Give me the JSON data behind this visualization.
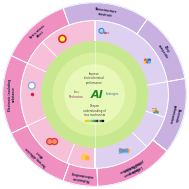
{
  "figsize": [
    1.89,
    1.89
  ],
  "dpi": 100,
  "r_outer": 0.97,
  "r_mid": 0.78,
  "r_inner_ring_outer": 0.78,
  "r_inner_ring_inner": 0.56,
  "r_core": 0.37,
  "outer_bg_color": "#cce0f5",
  "left_outer_color": "#f090c0",
  "right_outer_color": "#c8b0e0",
  "left_inner_color": "#f5c0d8",
  "right_inner_color": "#ddd0f0",
  "core_color": "#c8e890",
  "core_color2": "#d8f0a0",
  "core_color3": "#e8f8b8",
  "sections": [
    {
      "a1": 55,
      "a2": 110,
      "color": "#c8b0e0",
      "label": "Nanostructure\nconstruct",
      "la": 82,
      "lside": "right"
    },
    {
      "a1": 10,
      "a2": 55,
      "color": "#c8b0e0",
      "label": "Alloy\ncomposite",
      "la": 32,
      "lside": "right"
    },
    {
      "a1": -38,
      "a2": 10,
      "color": "#c8b0e0",
      "label": "Electrode\noptimization",
      "la": -14,
      "lside": "right"
    },
    {
      "a1": -88,
      "a2": -38,
      "color": "#c8b0e0",
      "label": "Surface\nmodification",
      "la": -63,
      "lside": "right"
    },
    {
      "a1": 110,
      "a2": 155,
      "color": "#f090c0",
      "label": "Strain-stress\neffect",
      "la": 132,
      "lside": "left"
    },
    {
      "a1": 155,
      "a2": 205,
      "color": "#f090c0",
      "label": "Electronic insulating\nsubstance",
      "la": 180,
      "lside": "left"
    },
    {
      "a1": 205,
      "a2": 250,
      "color": "#f090c0",
      "label": "Two-way diffusion\neffect",
      "la": 227,
      "lside": "left"
    },
    {
      "a1": 250,
      "a2": 272,
      "color": "#f090c0",
      "label": "Mechanism\nunderstanding",
      "la": 261,
      "lside": "left"
    },
    {
      "a1": 272,
      "a2": 322,
      "color": "#f090c0",
      "label": "Lithium poor\nphase formation",
      "la": 297,
      "lside": "left"
    }
  ],
  "dividers_outer": [
    55,
    10,
    -38,
    -88,
    110,
    155,
    205,
    250,
    272,
    322
  ],
  "dividers_inner": [
    90,
    -90
  ],
  "center_top_text": "Improve\nelectrochemical\nperformance",
  "center_left_text": "Loss\nMechanism",
  "center_right_text": "Strategies",
  "center_bot_text": "Deepen\nunderstanding of\nloss mechanism",
  "al_text": "Al",
  "label_r": 0.875
}
